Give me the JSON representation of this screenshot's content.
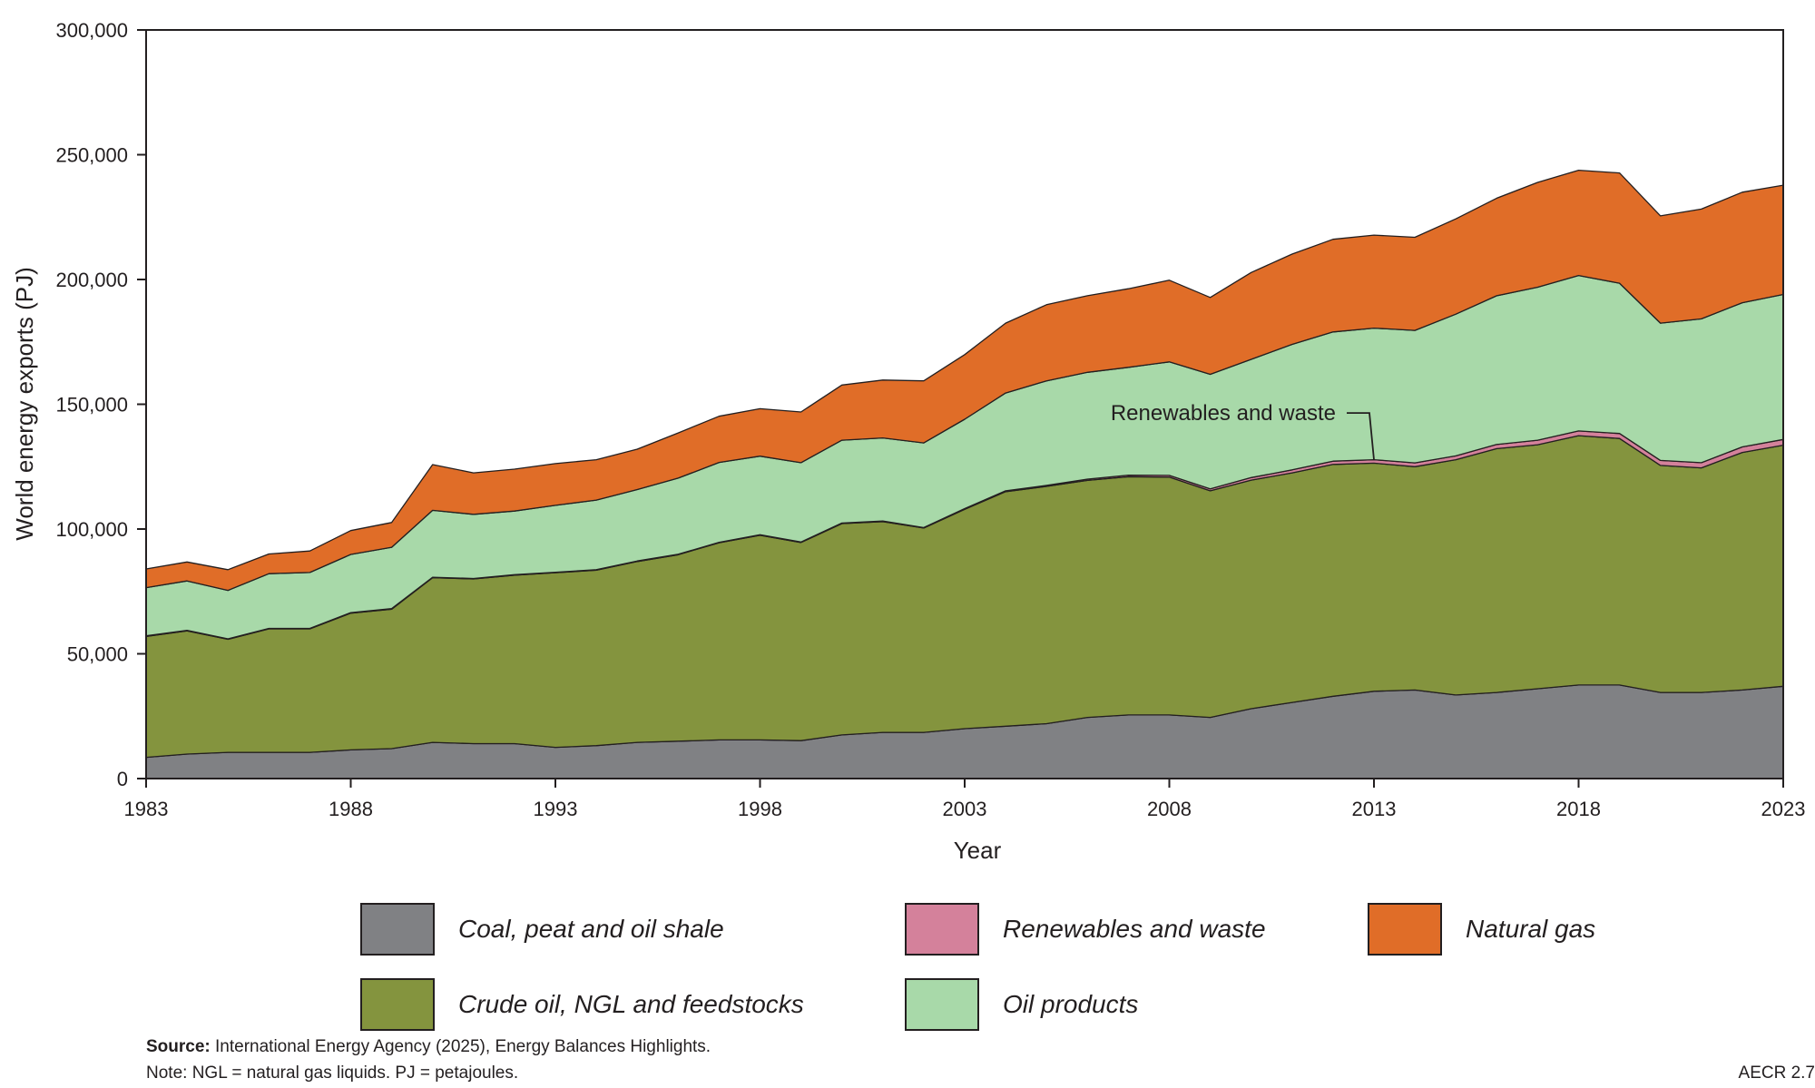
{
  "chart_data": {
    "type": "area",
    "stacked": true,
    "xlabel": "Year",
    "ylabel": "World energy exports (PJ)",
    "xlim": [
      1983,
      2023
    ],
    "ylim": [
      0,
      300000
    ],
    "x_ticks": [
      1983,
      1988,
      1993,
      1998,
      2003,
      2008,
      2013,
      2018,
      2023
    ],
    "y_ticks": [
      0,
      50000,
      100000,
      150000,
      200000,
      250000,
      300000
    ],
    "y_tick_labels": [
      "0",
      "50,000",
      "100,000",
      "150,000",
      "200,000",
      "250,000",
      "300,000"
    ],
    "x": [
      1983,
      1984,
      1985,
      1986,
      1987,
      1988,
      1989,
      1990,
      1991,
      1992,
      1993,
      1994,
      1995,
      1996,
      1997,
      1998,
      1999,
      2000,
      2001,
      2002,
      2003,
      2004,
      2005,
      2006,
      2007,
      2008,
      2009,
      2010,
      2011,
      2012,
      2013,
      2014,
      2015,
      2016,
      2017,
      2018,
      2019,
      2020,
      2021,
      2022,
      2023
    ],
    "series": [
      {
        "name": "Coal, peat and oil shale",
        "color": "#808184",
        "values": [
          8500,
          9800,
          10500,
          10500,
          10500,
          11500,
          12000,
          14500,
          14000,
          14000,
          12500,
          13200,
          14500,
          15000,
          15500,
          15500,
          15200,
          17500,
          18500,
          18500,
          20000,
          21000,
          22000,
          24500,
          25500,
          25500,
          24500,
          28000,
          30500,
          33000,
          35000,
          35500,
          33500,
          34500,
          36000,
          37500,
          37500,
          34500,
          34500,
          35500,
          37000
        ]
      },
      {
        "name": "Crude oil, NGL and feedstocks",
        "color": "#84943e",
        "values": [
          48500,
          49400,
          45300,
          49500,
          49500,
          54800,
          55900,
          66000,
          66000,
          67500,
          70000,
          70300,
          72500,
          74700,
          79000,
          82000,
          79400,
          84700,
          84500,
          81900,
          87900,
          94000,
          95100,
          95000,
          95500,
          95300,
          90800,
          91600,
          92000,
          92900,
          91400,
          89500,
          94300,
          97700,
          97800,
          99900,
          98800,
          91000,
          90000,
          95200,
          96600
        ]
      },
      {
        "name": "Renewables and waste",
        "color": "#d4819b",
        "values": [
          200,
          200,
          200,
          200,
          200,
          200,
          200,
          200,
          200,
          200,
          200,
          200,
          200,
          200,
          200,
          200,
          200,
          200,
          200,
          200,
          300,
          300,
          400,
          500,
          600,
          700,
          800,
          1000,
          1200,
          1300,
          1400,
          1500,
          1500,
          1700,
          1800,
          1900,
          2000,
          2000,
          2100,
          2200,
          2300
        ]
      },
      {
        "name": "Oil products",
        "color": "#a8d9a9",
        "values": [
          19300,
          19800,
          19400,
          21900,
          22400,
          23300,
          24600,
          26800,
          25700,
          25500,
          26800,
          27900,
          28600,
          30500,
          32000,
          31500,
          31800,
          33200,
          33300,
          33900,
          35800,
          39200,
          41900,
          42800,
          43200,
          45500,
          45900,
          47400,
          50300,
          51800,
          52700,
          53100,
          56800,
          59600,
          61300,
          62300,
          60200,
          55000,
          57600,
          57800,
          58100
        ]
      },
      {
        "name": "Natural gas",
        "color": "#e06d28",
        "values": [
          7500,
          7600,
          8300,
          7900,
          8600,
          9600,
          9900,
          18300,
          16600,
          16800,
          16700,
          16200,
          16200,
          18100,
          18500,
          19000,
          20300,
          22100,
          23200,
          24900,
          25900,
          28000,
          30500,
          30700,
          31500,
          32700,
          30800,
          34800,
          36200,
          37100,
          37300,
          37300,
          38200,
          39100,
          42000,
          42200,
          44200,
          43000,
          44000,
          44300,
          43800
        ]
      }
    ],
    "annotations": [
      {
        "text": "Renewables and waste",
        "x": 2013,
        "series": "Renewables and waste"
      }
    ],
    "grid": false,
    "legend_placement": "bottom"
  },
  "notes": {
    "source_label": "Source:",
    "source_text": " International Energy Agency (2025), Energy Balances Highlights.",
    "note_text": "Note: NGL = natural gas liquids. PJ = petajoules.",
    "figure_id": "AECR 2.7"
  }
}
